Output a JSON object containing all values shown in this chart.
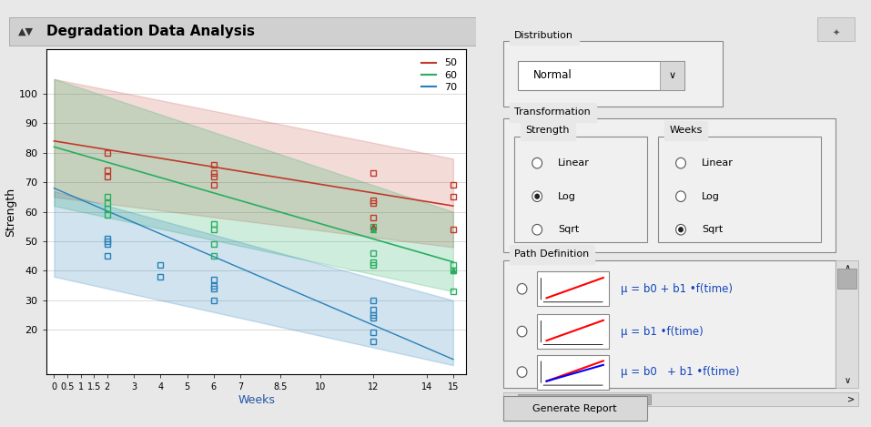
{
  "title": "Degradation Data Analysis",
  "xlabel": "Weeks",
  "ylabel": "Strength",
  "xlim": [
    -0.3,
    15.5
  ],
  "ylim": [
    5,
    115
  ],
  "xticks": [
    0.0,
    0.5,
    1.0,
    1.5,
    2.0,
    3.0,
    4.0,
    5.0,
    6.0,
    7.0,
    8.5,
    10.0,
    12.0,
    14.0,
    15.0
  ],
  "yticks": [
    20,
    30,
    40,
    50,
    60,
    70,
    80,
    90,
    100
  ],
  "legend_labels": [
    "50",
    "60",
    "70"
  ],
  "legend_colors": [
    "#c0392b",
    "#27ae60",
    "#2980b9"
  ],
  "bg_color": "#e8e8e8",
  "plot_bg_color": "#ffffff",
  "red_line": {
    "x": [
      0,
      15
    ],
    "y": [
      84,
      62
    ]
  },
  "green_line": {
    "x": [
      0,
      15
    ],
    "y": [
      82,
      43
    ]
  },
  "blue_line": {
    "x": [
      0,
      15
    ],
    "y": [
      68,
      10
    ]
  },
  "red_band_upper": {
    "x": [
      0,
      15
    ],
    "y": [
      105,
      78
    ]
  },
  "red_band_lower": {
    "x": [
      0,
      15
    ],
    "y": [
      65,
      48
    ]
  },
  "green_band_upper": {
    "x": [
      0,
      15
    ],
    "y": [
      105,
      60
    ]
  },
  "green_band_lower": {
    "x": [
      0,
      15
    ],
    "y": [
      62,
      33
    ]
  },
  "blue_band_upper": {
    "x": [
      0,
      15
    ],
    "y": [
      67,
      30
    ]
  },
  "blue_band_lower": {
    "x": [
      0,
      15
    ],
    "y": [
      38,
      8
    ]
  },
  "red_data": {
    "x": [
      2,
      2,
      2,
      6,
      6,
      6,
      6,
      12,
      12,
      12,
      12,
      15,
      15,
      15
    ],
    "y": [
      80,
      74,
      72,
      76,
      73,
      72,
      69,
      73,
      64,
      63,
      58,
      69,
      65,
      54
    ]
  },
  "green_data": {
    "x": [
      2,
      2,
      2,
      2,
      6,
      6,
      6,
      6,
      12,
      12,
      12,
      12,
      15,
      15,
      15
    ],
    "y": [
      65,
      63,
      61,
      59,
      56,
      54,
      49,
      45,
      55,
      46,
      43,
      42,
      42,
      40,
      33
    ]
  },
  "blue_data": {
    "x": [
      2,
      2,
      2,
      2,
      4,
      4,
      6,
      6,
      6,
      6,
      12,
      12,
      12,
      12,
      12,
      12
    ],
    "y": [
      51,
      50,
      49,
      45,
      42,
      38,
      37,
      35,
      34,
      30,
      30,
      27,
      25,
      24,
      19,
      16
    ]
  },
  "red_triangle": {
    "x": [
      12
    ],
    "y": [
      55
    ]
  },
  "green_triangle": {
    "x": [
      12,
      15
    ],
    "y": [
      54,
      40
    ]
  },
  "dist_label": "Distribution",
  "dist_value": "Normal",
  "trans_label": "Transformation",
  "strength_label": "Strength",
  "weeks_label": "Weeks",
  "str_options": [
    "Linear",
    "Log",
    "Sqrt"
  ],
  "str_selected": 1,
  "wk_options": [
    "Linear",
    "Log",
    "Sqrt"
  ],
  "wk_selected": 2,
  "path_def_label": "Path Definition",
  "path_eq1": "μ = b0 + b1 •f(time)",
  "path_eq2": "μ = b1 •f(time)",
  "path_eq3": "μ = b0   + b1 •f(time)"
}
